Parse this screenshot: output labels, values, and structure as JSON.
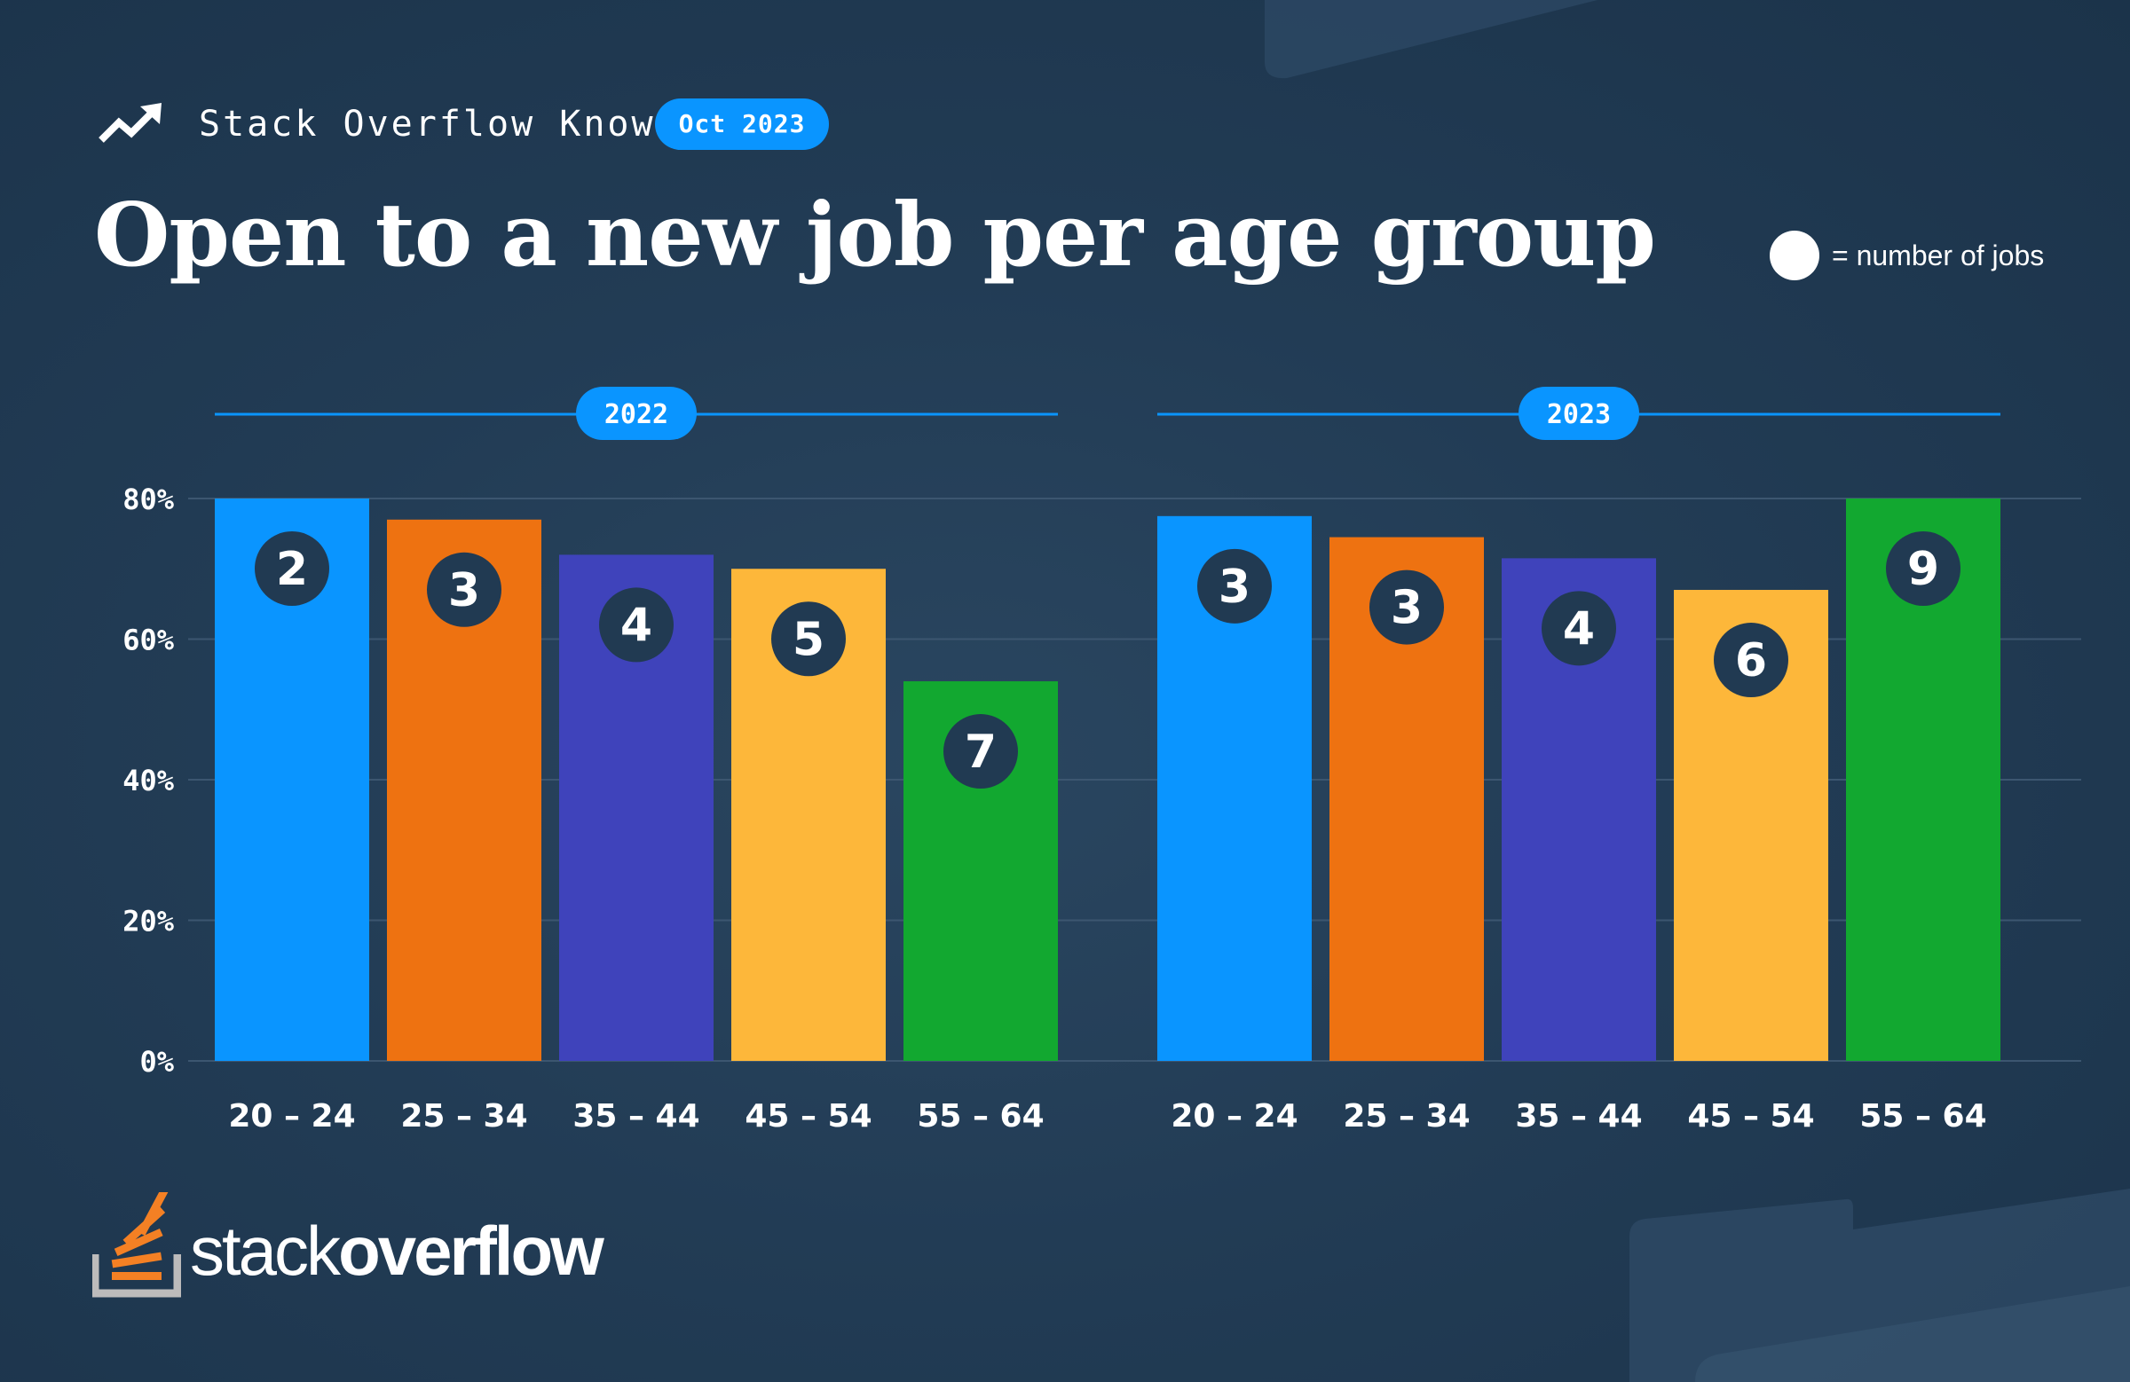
{
  "header": {
    "brand_label": "Stack Overflow Knows",
    "date_badge": "Oct 2023",
    "title": "Open to a new job per age group",
    "legend_label": "= number of jobs"
  },
  "footer": {
    "logo_light": "stack",
    "logo_bold": "overflow"
  },
  "colors": {
    "background": "#213a52",
    "accent": "#0a95ff",
    "bars": [
      "#0a95ff",
      "#ee7211",
      "#3f43bb",
      "#fdb73a",
      "#12a830"
    ],
    "badge_circle": "#213a52",
    "gridline": "#3c5670",
    "brand_orange": "#f48024",
    "brand_gray": "#bcbbbb"
  },
  "chart_data": {
    "type": "bar",
    "ylim": [
      0,
      80
    ],
    "yticks": [
      "0%",
      "20%",
      "40%",
      "60%",
      "80%"
    ],
    "yticks_values": [
      0,
      20,
      40,
      60,
      80
    ],
    "categories": [
      "20 – 24",
      "25 – 34",
      "35 – 44",
      "45 – 54",
      "55 – 64"
    ],
    "groups": [
      {
        "label": "2022",
        "values": [
          80,
          77,
          72,
          70,
          54
        ],
        "jobs": [
          "2",
          "3",
          "4",
          "5",
          "7"
        ]
      },
      {
        "label": "2023",
        "values": [
          77.5,
          74.5,
          71.5,
          67,
          80
        ],
        "jobs": [
          "3",
          "3",
          "4",
          "6",
          "9"
        ]
      }
    ]
  }
}
